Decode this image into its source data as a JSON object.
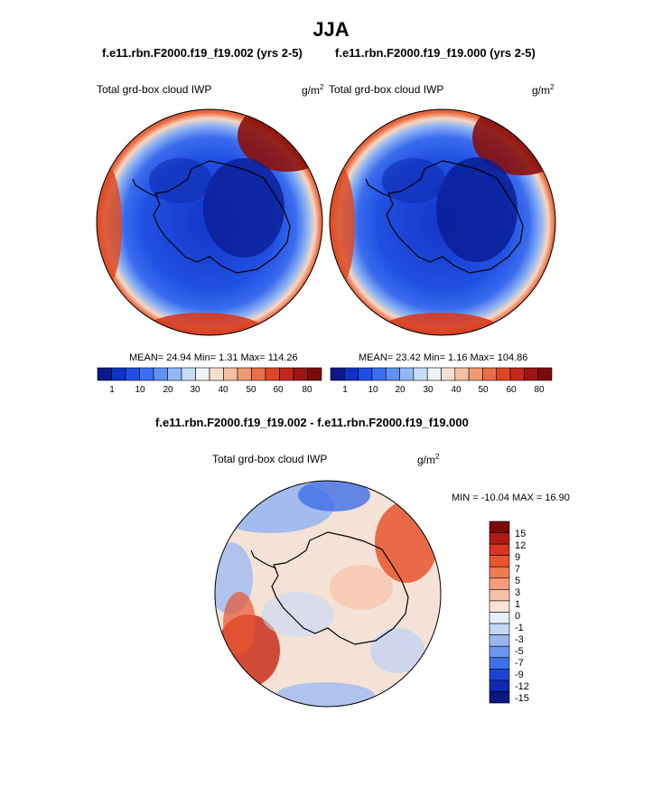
{
  "figure": {
    "season_title": "JJA",
    "top_left_case": "f.e11.rbn.F2000.f19_f19.002 (yrs 2-5)",
    "top_right_case": "f.e11.rbn.F2000.f19_f19.000 (yrs 2-5)",
    "diff_title": "f.e11.rbn.F2000.f19_f19.002 - f.e11.rbn.F2000.f19_f19.000"
  },
  "panels": {
    "left": {
      "variable": "Total grd-box cloud IWP",
      "unit_base": "g/m",
      "unit_exp": "2",
      "stats": "MEAN=  24.94  Min=   1.31  Max= 114.26"
    },
    "right": {
      "variable": "Total grd-box cloud IWP",
      "unit_base": "g/m",
      "unit_exp": "2",
      "stats": "MEAN=  23.42  Min=   1.16  Max= 104.86"
    },
    "diff": {
      "variable": "Total grd-box cloud IWP",
      "unit_base": "g/m",
      "unit_exp": "2",
      "stats": "MIN = -10.04 MAX =  16.90"
    }
  },
  "colorbar_abs": {
    "labels": [
      "1",
      "10",
      "20",
      "30",
      "40",
      "50",
      "60",
      "80"
    ],
    "colors": [
      "#0a1a8a",
      "#1030c8",
      "#1f4fe6",
      "#3a70ef",
      "#6090f2",
      "#93b8f5",
      "#c7dcf7",
      "#eef3f8",
      "#f8e0cf",
      "#f5bfa0",
      "#f09a72",
      "#ea6f48",
      "#de4726",
      "#c5281a",
      "#a01410",
      "#7c0a0a"
    ]
  },
  "colorbar_diff": {
    "labels": [
      "15",
      "12",
      "9",
      "7",
      "5",
      "3",
      "1",
      "0",
      "-1",
      "-3",
      "-5",
      "-7",
      "-9",
      "-12",
      "-15"
    ],
    "colors": [
      "#7c0a0a",
      "#b01c14",
      "#d8341f",
      "#e8552f",
      "#f07a4f",
      "#f49d7c",
      "#f7c3a8",
      "#fae3d4",
      "#e6eefa",
      "#c2d6f5",
      "#96b7f2",
      "#6b96ee",
      "#3f6fe8",
      "#1d43d6",
      "#0d2ab0",
      "#081a80"
    ]
  }
}
